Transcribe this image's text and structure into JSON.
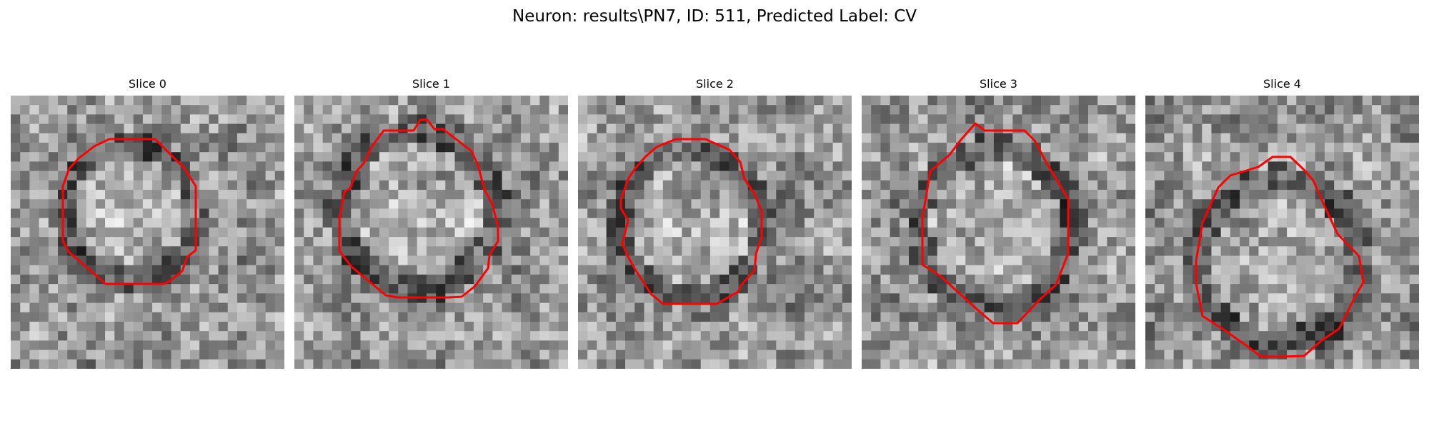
{
  "figure": {
    "title": "Neuron: results\\PN7, ID: 511, Predicted Label: CV"
  },
  "panels": [
    {
      "title": "Slice 0"
    },
    {
      "title": "Slice 1"
    },
    {
      "title": "Slice 2"
    },
    {
      "title": "Slice 3"
    },
    {
      "title": "Slice 4"
    }
  ],
  "colors": {
    "contour": "#ff0000",
    "background": "#ffffff"
  }
}
